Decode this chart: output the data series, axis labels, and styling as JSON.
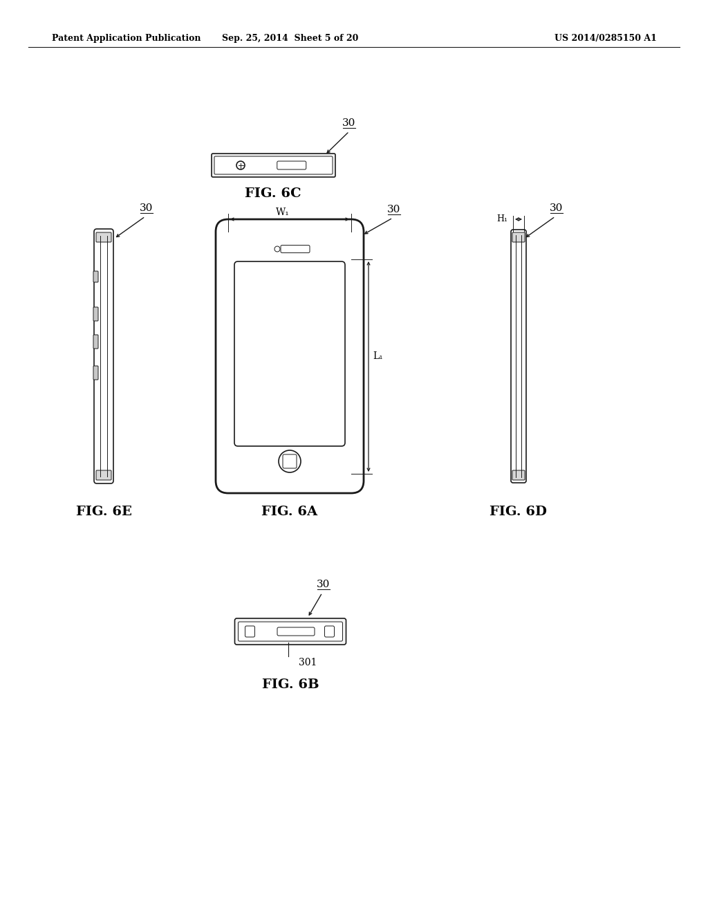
{
  "bg_color": "#ffffff",
  "header_left": "Patent Application Publication",
  "header_center": "Sep. 25, 2014  Sheet 5 of 20",
  "header_right": "US 2014/0285150 A1",
  "fig6c_label": "FIG. 6C",
  "fig6a_label": "FIG. 6A",
  "fig6d_label": "FIG. 6D",
  "fig6e_label": "FIG. 6E",
  "fig6b_label": "FIG. 6B",
  "ref_30": "30",
  "ref_301": "301",
  "W1_label": "W₁",
  "L1_label": "L₁",
  "H1_label": "H₁",
  "line_color": "#1a1a1a",
  "line_width": 1.2,
  "thin_line": 0.7
}
